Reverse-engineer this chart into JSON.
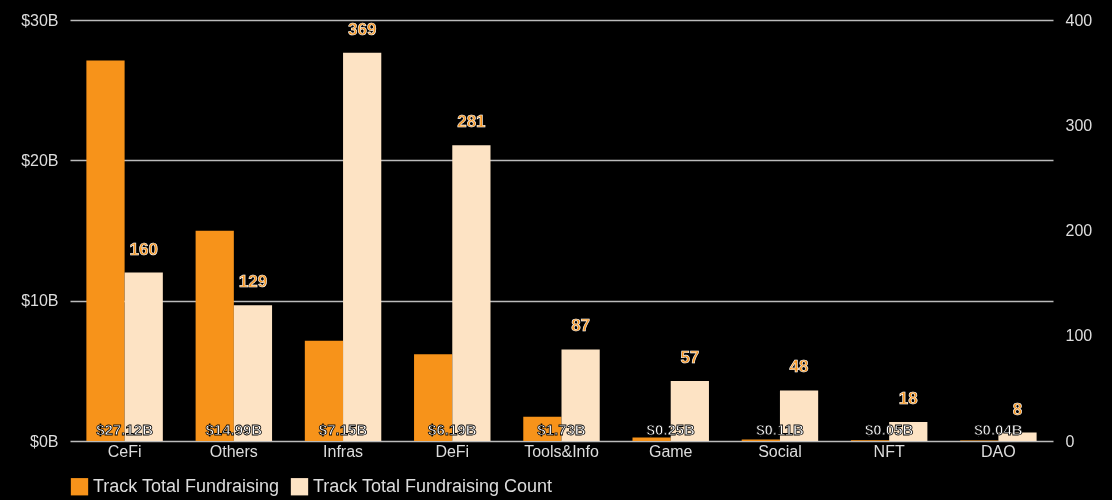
{
  "chart_data": {
    "type": "bar",
    "categories": [
      "CeFi",
      "Others",
      "Infras",
      "DeFi",
      "Tools&Info",
      "Game",
      "Social",
      "NFT",
      "DAO"
    ],
    "series": [
      {
        "name": "Track Total Fundraising",
        "color": "#f7931a",
        "values": [
          27.12,
          14.99,
          7.15,
          6.19,
          1.73,
          0.25,
          0.11,
          0.05,
          0.04
        ],
        "value_labels": [
          "$27.12B",
          "$14.99B",
          "$7.15B",
          "$6.19B",
          "$1.73B",
          "$0.25B",
          "$0.11B",
          "$0.05B",
          "$0.04B"
        ]
      },
      {
        "name": "Track Total Fundraising Count",
        "color": "#fde3c4",
        "axis": "y2",
        "values": [
          160,
          129,
          369,
          281,
          87,
          57,
          48,
          18,
          8
        ],
        "value_labels": [
          "160",
          "129",
          "369",
          "281",
          "87",
          "57",
          "48",
          "18",
          "8"
        ]
      }
    ],
    "ylim": [
      0,
      30
    ],
    "yticks": [
      {
        "value": 0,
        "label": "$0B"
      },
      {
        "value": 10,
        "label": "$10B"
      },
      {
        "value": 20,
        "label": "$20B"
      },
      {
        "value": 30,
        "label": "$30B"
      }
    ],
    "y2lim": [
      0,
      400
    ],
    "y2ticks": [
      0,
      100,
      200,
      300,
      400
    ],
    "grid": "y",
    "legend": "bottom"
  }
}
